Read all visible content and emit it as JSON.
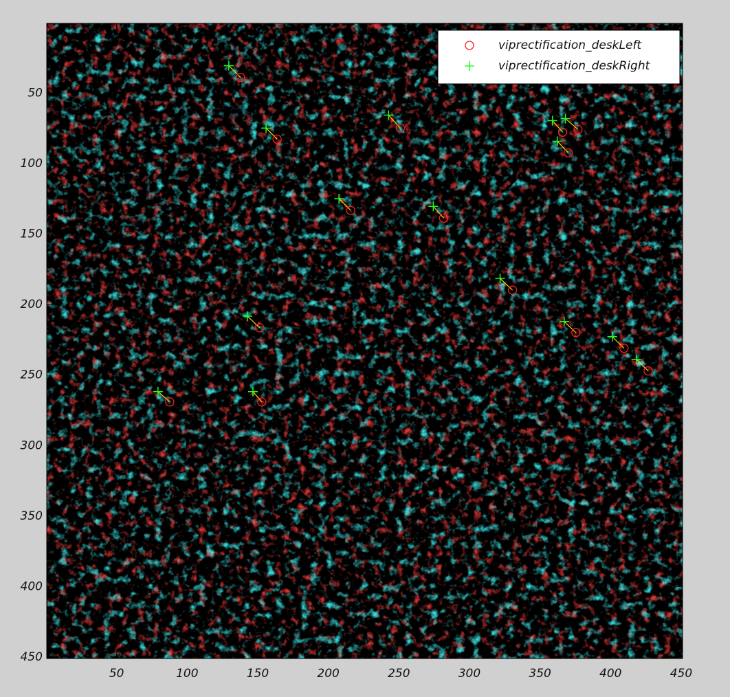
{
  "chart_data": {
    "type": "scatter",
    "xlim": [
      0.5,
      451
    ],
    "ylim": [
      0.5,
      451
    ],
    "y_reversed": true,
    "xticks": [
      50,
      100,
      150,
      200,
      250,
      300,
      350,
      400,
      450
    ],
    "yticks": [
      50,
      100,
      150,
      200,
      250,
      300,
      350,
      400,
      450
    ],
    "link_color": "#ffd700",
    "legend": "upper right",
    "series": [
      {
        "name": "viprectification_deskLeft",
        "marker": "circle",
        "color": "#ff2020",
        "x": [
          137.8,
          251,
          163.7,
          215.9,
          281.7,
          330.5,
          151.4,
          375.4,
          409.5,
          426.6,
          87.6,
          152.9,
          370,
          376.9,
          366.1
        ],
        "y": [
          38.8,
          74.8,
          82.6,
          133.2,
          138.6,
          189.7,
          216.4,
          219.8,
          231,
          247,
          269,
          269,
          92.3,
          75.8,
          77.7
        ]
      },
      {
        "name": "viprectification_deskRight",
        "marker": "plus",
        "color": "#20ff20",
        "x": [
          129.5,
          242.7,
          155.9,
          207.6,
          274.4,
          321.7,
          142.7,
          367.1,
          401.2,
          418.3,
          79.3,
          146.6,
          362.2,
          368,
          358.8
        ],
        "y": [
          30.5,
          65.6,
          74.8,
          124.9,
          130.3,
          181.4,
          208.2,
          212,
          222.7,
          238.8,
          261.7,
          261.7,
          84.1,
          68,
          69.5
        ]
      }
    ]
  }
}
